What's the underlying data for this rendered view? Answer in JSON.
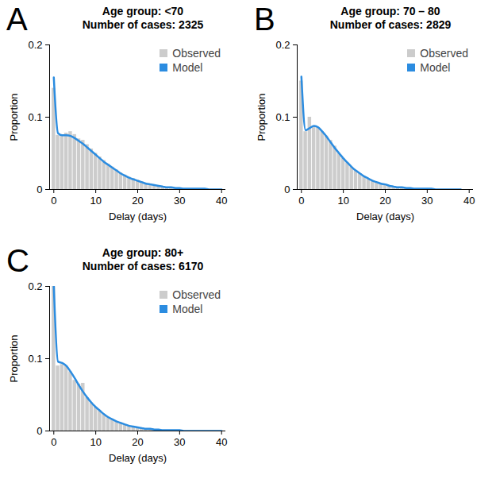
{
  "chart_data": [
    {
      "type": "bar",
      "label": "A",
      "title": "Age group: <70",
      "subtitle": "Number of cases: 2325",
      "x_label": "Delay (days)",
      "y_label": "Proportion",
      "x": [
        0,
        1,
        2,
        3,
        4,
        5,
        6,
        7,
        8,
        9,
        10,
        11,
        12,
        13,
        14,
        15,
        16,
        17,
        18,
        19,
        20,
        21,
        22,
        23,
        24,
        25,
        26,
        27,
        28,
        29,
        30,
        31,
        32,
        33,
        34,
        35,
        36,
        37,
        38,
        39,
        40
      ],
      "series": [
        {
          "name": "Observed",
          "type": "bar",
          "color": "#cccccc",
          "values": [
            0.14,
            0.075,
            0.075,
            0.078,
            0.08,
            0.076,
            0.07,
            0.068,
            0.062,
            0.056,
            0.05,
            0.045,
            0.04,
            0.035,
            0.031,
            0.027,
            0.023,
            0.02,
            0.017,
            0.015,
            0.013,
            0.011,
            0.009,
            0.008,
            0.006,
            0.005,
            0.004,
            0.003,
            0.003,
            0.002,
            0.002,
            0.001,
            0.001,
            0.001,
            0.001,
            0.001,
            0,
            0,
            0,
            0,
            0
          ]
        },
        {
          "name": "Model",
          "type": "line",
          "color": "#2b8ce0",
          "line_style": "solid",
          "values": [
            0.155,
            0.078,
            0.075,
            0.075,
            0.074,
            0.071,
            0.067,
            0.063,
            0.058,
            0.053,
            0.048,
            0.043,
            0.038,
            0.034,
            0.03,
            0.026,
            0.022,
            0.019,
            0.016,
            0.014,
            0.012,
            0.01,
            0.008,
            0.007,
            0.006,
            0.005,
            0.004,
            0.003,
            0.003,
            0.002,
            0.002,
            0.001,
            0.001,
            0.001,
            0.001,
            0.001,
            0.001,
            0,
            0,
            0,
            0
          ]
        }
      ],
      "xlim": [
        -1,
        41
      ],
      "xticks": [
        0,
        10,
        20,
        30,
        40
      ],
      "ylim": [
        0,
        0.2
      ],
      "yticks": [
        0,
        0.1,
        0.2
      ],
      "legend": "top-right"
    },
    {
      "type": "bar",
      "label": "B",
      "title": "Age group: 70 – 80",
      "subtitle": "Number of cases: 2829",
      "x_label": "Delay (days)",
      "y_label": "Proportion",
      "x": [
        0,
        1,
        2,
        3,
        4,
        5,
        6,
        7,
        8,
        9,
        10,
        11,
        12,
        13,
        14,
        15,
        16,
        17,
        18,
        19,
        20,
        21,
        22,
        23,
        24,
        25,
        26,
        27,
        28,
        29,
        30,
        31,
        32,
        33,
        34,
        35,
        36,
        37,
        38
      ],
      "series": [
        {
          "name": "Observed",
          "type": "bar",
          "color": "#cccccc",
          "values": [
            0.15,
            0.08,
            0.1,
            0.088,
            0.085,
            0.08,
            0.074,
            0.068,
            0.06,
            0.05,
            0.043,
            0.037,
            0.031,
            0.026,
            0.022,
            0.018,
            0.015,
            0.012,
            0.01,
            0.008,
            0.007,
            0.005,
            0.004,
            0.003,
            0.003,
            0.002,
            0.002,
            0.001,
            0.001,
            0.001,
            0.001,
            0,
            0,
            0,
            0,
            0,
            0,
            0,
            0
          ]
        },
        {
          "name": "Model",
          "type": "line",
          "color": "#2b8ce0",
          "line_style": "solid",
          "values": [
            0.156,
            0.082,
            0.085,
            0.088,
            0.086,
            0.08,
            0.073,
            0.065,
            0.057,
            0.05,
            0.043,
            0.037,
            0.031,
            0.026,
            0.022,
            0.018,
            0.015,
            0.012,
            0.01,
            0.008,
            0.007,
            0.005,
            0.004,
            0.003,
            0.003,
            0.002,
            0.002,
            0.001,
            0.001,
            0.001,
            0.001,
            0.001,
            0,
            0,
            0,
            0,
            0,
            0,
            0
          ]
        }
      ],
      "xlim": [
        -1,
        41
      ],
      "xticks": [
        0,
        10,
        20,
        30,
        40
      ],
      "ylim": [
        0,
        0.2
      ],
      "yticks": [
        0,
        0.1,
        0.2
      ],
      "legend": "top-right"
    },
    {
      "type": "bar",
      "label": "C",
      "title": "Age group: 80+",
      "subtitle": "Number of cases: 6170",
      "x_label": "Delay (days)",
      "y_label": "Proportion",
      "x": [
        0,
        1,
        2,
        3,
        4,
        5,
        6,
        7,
        8,
        9,
        10,
        11,
        12,
        13,
        14,
        15,
        16,
        17,
        18,
        19,
        20,
        21,
        22,
        23,
        24,
        25,
        26,
        27,
        28,
        29,
        30,
        31,
        32,
        33,
        34,
        35,
        36,
        37,
        38,
        39,
        40
      ],
      "series": [
        {
          "name": "Observed",
          "type": "bar",
          "color": "#cccccc",
          "values": [
            0.2,
            0.09,
            0.092,
            0.09,
            0.082,
            0.07,
            0.065,
            0.066,
            0.046,
            0.039,
            0.033,
            0.028,
            0.023,
            0.019,
            0.016,
            0.013,
            0.011,
            0.009,
            0.007,
            0.006,
            0.005,
            0.004,
            0.003,
            0.003,
            0.002,
            0.002,
            0.001,
            0.001,
            0.001,
            0.001,
            0,
            0,
            0,
            0,
            0,
            0,
            0,
            0,
            0,
            0,
            0
          ]
        },
        {
          "name": "Model",
          "type": "line",
          "color": "#2b8ce0",
          "line_style": "solid",
          "values": [
            0.2,
            0.096,
            0.094,
            0.09,
            0.082,
            0.073,
            0.063,
            0.054,
            0.046,
            0.039,
            0.033,
            0.028,
            0.023,
            0.019,
            0.016,
            0.013,
            0.011,
            0.009,
            0.007,
            0.006,
            0.005,
            0.004,
            0.003,
            0.003,
            0.002,
            0.002,
            0.001,
            0.001,
            0.001,
            0.001,
            0.001,
            0,
            0,
            0,
            0,
            0,
            0,
            0,
            0,
            0,
            0
          ]
        }
      ],
      "xlim": [
        -1,
        41
      ],
      "xticks": [
        0,
        10,
        20,
        30,
        40
      ],
      "ylim": [
        0,
        0.2
      ],
      "yticks": [
        0,
        0.1,
        0.2
      ],
      "legend": "top-right"
    }
  ]
}
